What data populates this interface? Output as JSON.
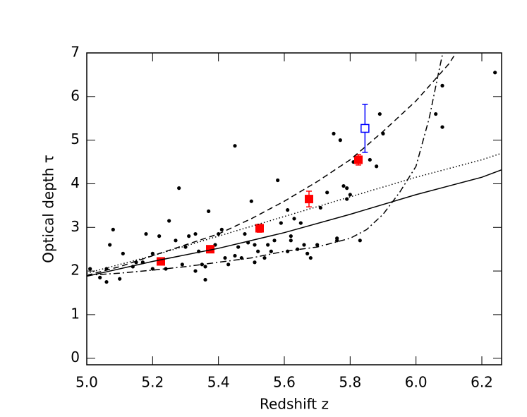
{
  "chart_data": {
    "type": "scatter",
    "xlabel": "Redshift z",
    "ylabel": "Optical depth τ",
    "xlim": [
      5.0,
      6.26
    ],
    "ylim": [
      -0.15,
      7
    ],
    "xticks": [
      {
        "value": 5.0,
        "label": "5.0"
      },
      {
        "value": 5.2,
        "label": "5.2"
      },
      {
        "value": 5.4,
        "label": "5.4"
      },
      {
        "value": 5.6,
        "label": "5.6"
      },
      {
        "value": 5.8,
        "label": "5.8"
      },
      {
        "value": 6.0,
        "label": "6.0"
      },
      {
        "value": 6.2,
        "label": "6.2"
      }
    ],
    "yticks": [
      0,
      1,
      2,
      3,
      4,
      5,
      6,
      7
    ],
    "series": [
      {
        "kind": "points",
        "marker": "dot",
        "color": "#000000",
        "x": [
          5.01,
          5.04,
          5.06,
          5.06,
          5.07,
          5.08,
          5.1,
          5.11,
          5.14,
          5.15,
          5.17,
          5.18,
          5.2,
          5.2,
          5.22,
          5.24,
          5.25,
          5.27,
          5.28,
          5.29,
          5.3,
          5.31,
          5.33,
          5.33,
          5.34,
          5.35,
          5.36,
          5.36,
          5.37,
          5.39,
          5.4,
          5.41,
          5.42,
          5.43,
          5.45,
          5.45,
          5.46,
          5.47,
          5.48,
          5.49,
          5.5,
          5.51,
          5.51,
          5.52,
          5.54,
          5.55,
          5.56,
          5.57,
          5.58,
          5.59,
          5.61,
          5.61,
          5.62,
          5.62,
          5.63,
          5.64,
          5.65,
          5.66,
          5.67,
          5.68,
          5.7,
          5.71,
          5.73,
          5.75,
          5.76,
          5.76,
          5.77,
          5.78,
          5.79,
          5.79,
          5.8,
          5.81,
          5.83,
          5.86,
          5.88,
          5.89,
          5.9,
          6.06,
          6.08,
          6.08,
          6.24
        ],
        "values": [
          2.05,
          1.85,
          1.75,
          2.05,
          2.6,
          2.95,
          1.82,
          2.4,
          2.1,
          2.2,
          2.2,
          2.85,
          2.05,
          2.4,
          2.8,
          2.05,
          3.15,
          2.7,
          3.9,
          2.15,
          2.55,
          2.8,
          2.0,
          2.85,
          2.45,
          2.15,
          2.1,
          1.8,
          3.37,
          2.6,
          2.85,
          2.95,
          2.3,
          2.15,
          4.87,
          2.35,
          2.55,
          2.3,
          2.85,
          2.65,
          3.6,
          2.6,
          2.2,
          2.45,
          2.3,
          2.6,
          2.45,
          2.7,
          4.08,
          3.1,
          2.45,
          3.4,
          2.7,
          2.8,
          3.2,
          2.5,
          3.1,
          2.6,
          2.4,
          2.3,
          2.6,
          3.45,
          3.8,
          5.15,
          2.75,
          2.7,
          5.0,
          3.95,
          3.65,
          3.9,
          3.75,
          4.5,
          2.7,
          4.55,
          4.4,
          5.6,
          5.15,
          5.6,
          6.25,
          5.3,
          6.55
        ]
      },
      {
        "kind": "points",
        "marker": "square",
        "color": "#ff0000",
        "x": [
          5.225,
          5.375,
          5.525,
          5.675,
          5.825
        ],
        "values": [
          2.22,
          2.5,
          2.98,
          3.65,
          4.55
        ],
        "errors": [
          0.05,
          0.06,
          0.09,
          0.18,
          0.12
        ]
      },
      {
        "kind": "points",
        "marker": "open-square",
        "color": "#0000ff",
        "x": [
          5.845
        ],
        "values": [
          5.27
        ],
        "errors": [
          0.55
        ]
      },
      {
        "kind": "curve",
        "style": "solid",
        "color": "#000000",
        "x": [
          5.0,
          5.2,
          5.4,
          5.6,
          5.8,
          6.0,
          6.2,
          6.26
        ],
        "values": [
          1.88,
          2.22,
          2.52,
          2.88,
          3.3,
          3.75,
          4.15,
          4.32
        ]
      },
      {
        "kind": "curve",
        "style": "dotted",
        "color": "#000000",
        "x": [
          5.0,
          5.2,
          5.4,
          5.6,
          5.8,
          6.0,
          6.2,
          6.26
        ],
        "values": [
          1.95,
          2.35,
          2.8,
          3.25,
          3.7,
          4.15,
          4.55,
          4.7
        ]
      },
      {
        "kind": "curve",
        "style": "dashed",
        "color": "#000000",
        "x": [
          5.0,
          5.1,
          5.2,
          5.3,
          5.4,
          5.5,
          5.6,
          5.7,
          5.8,
          5.9,
          6.0,
          6.1,
          6.13
        ],
        "values": [
          1.9,
          2.1,
          2.35,
          2.6,
          2.85,
          3.2,
          3.6,
          4.05,
          4.55,
          5.2,
          5.9,
          6.75,
          7.1
        ]
      },
      {
        "kind": "curve",
        "style": "dashdot",
        "color": "#000000",
        "x": [
          5.0,
          5.1,
          5.2,
          5.3,
          5.4,
          5.5,
          5.6,
          5.7,
          5.8,
          5.85,
          5.9,
          5.95,
          6.0,
          6.04,
          6.07,
          6.09
        ],
        "values": [
          1.9,
          1.95,
          2.02,
          2.1,
          2.2,
          2.3,
          2.45,
          2.55,
          2.75,
          2.95,
          3.3,
          3.8,
          4.4,
          5.5,
          6.6,
          7.3
        ]
      }
    ]
  }
}
